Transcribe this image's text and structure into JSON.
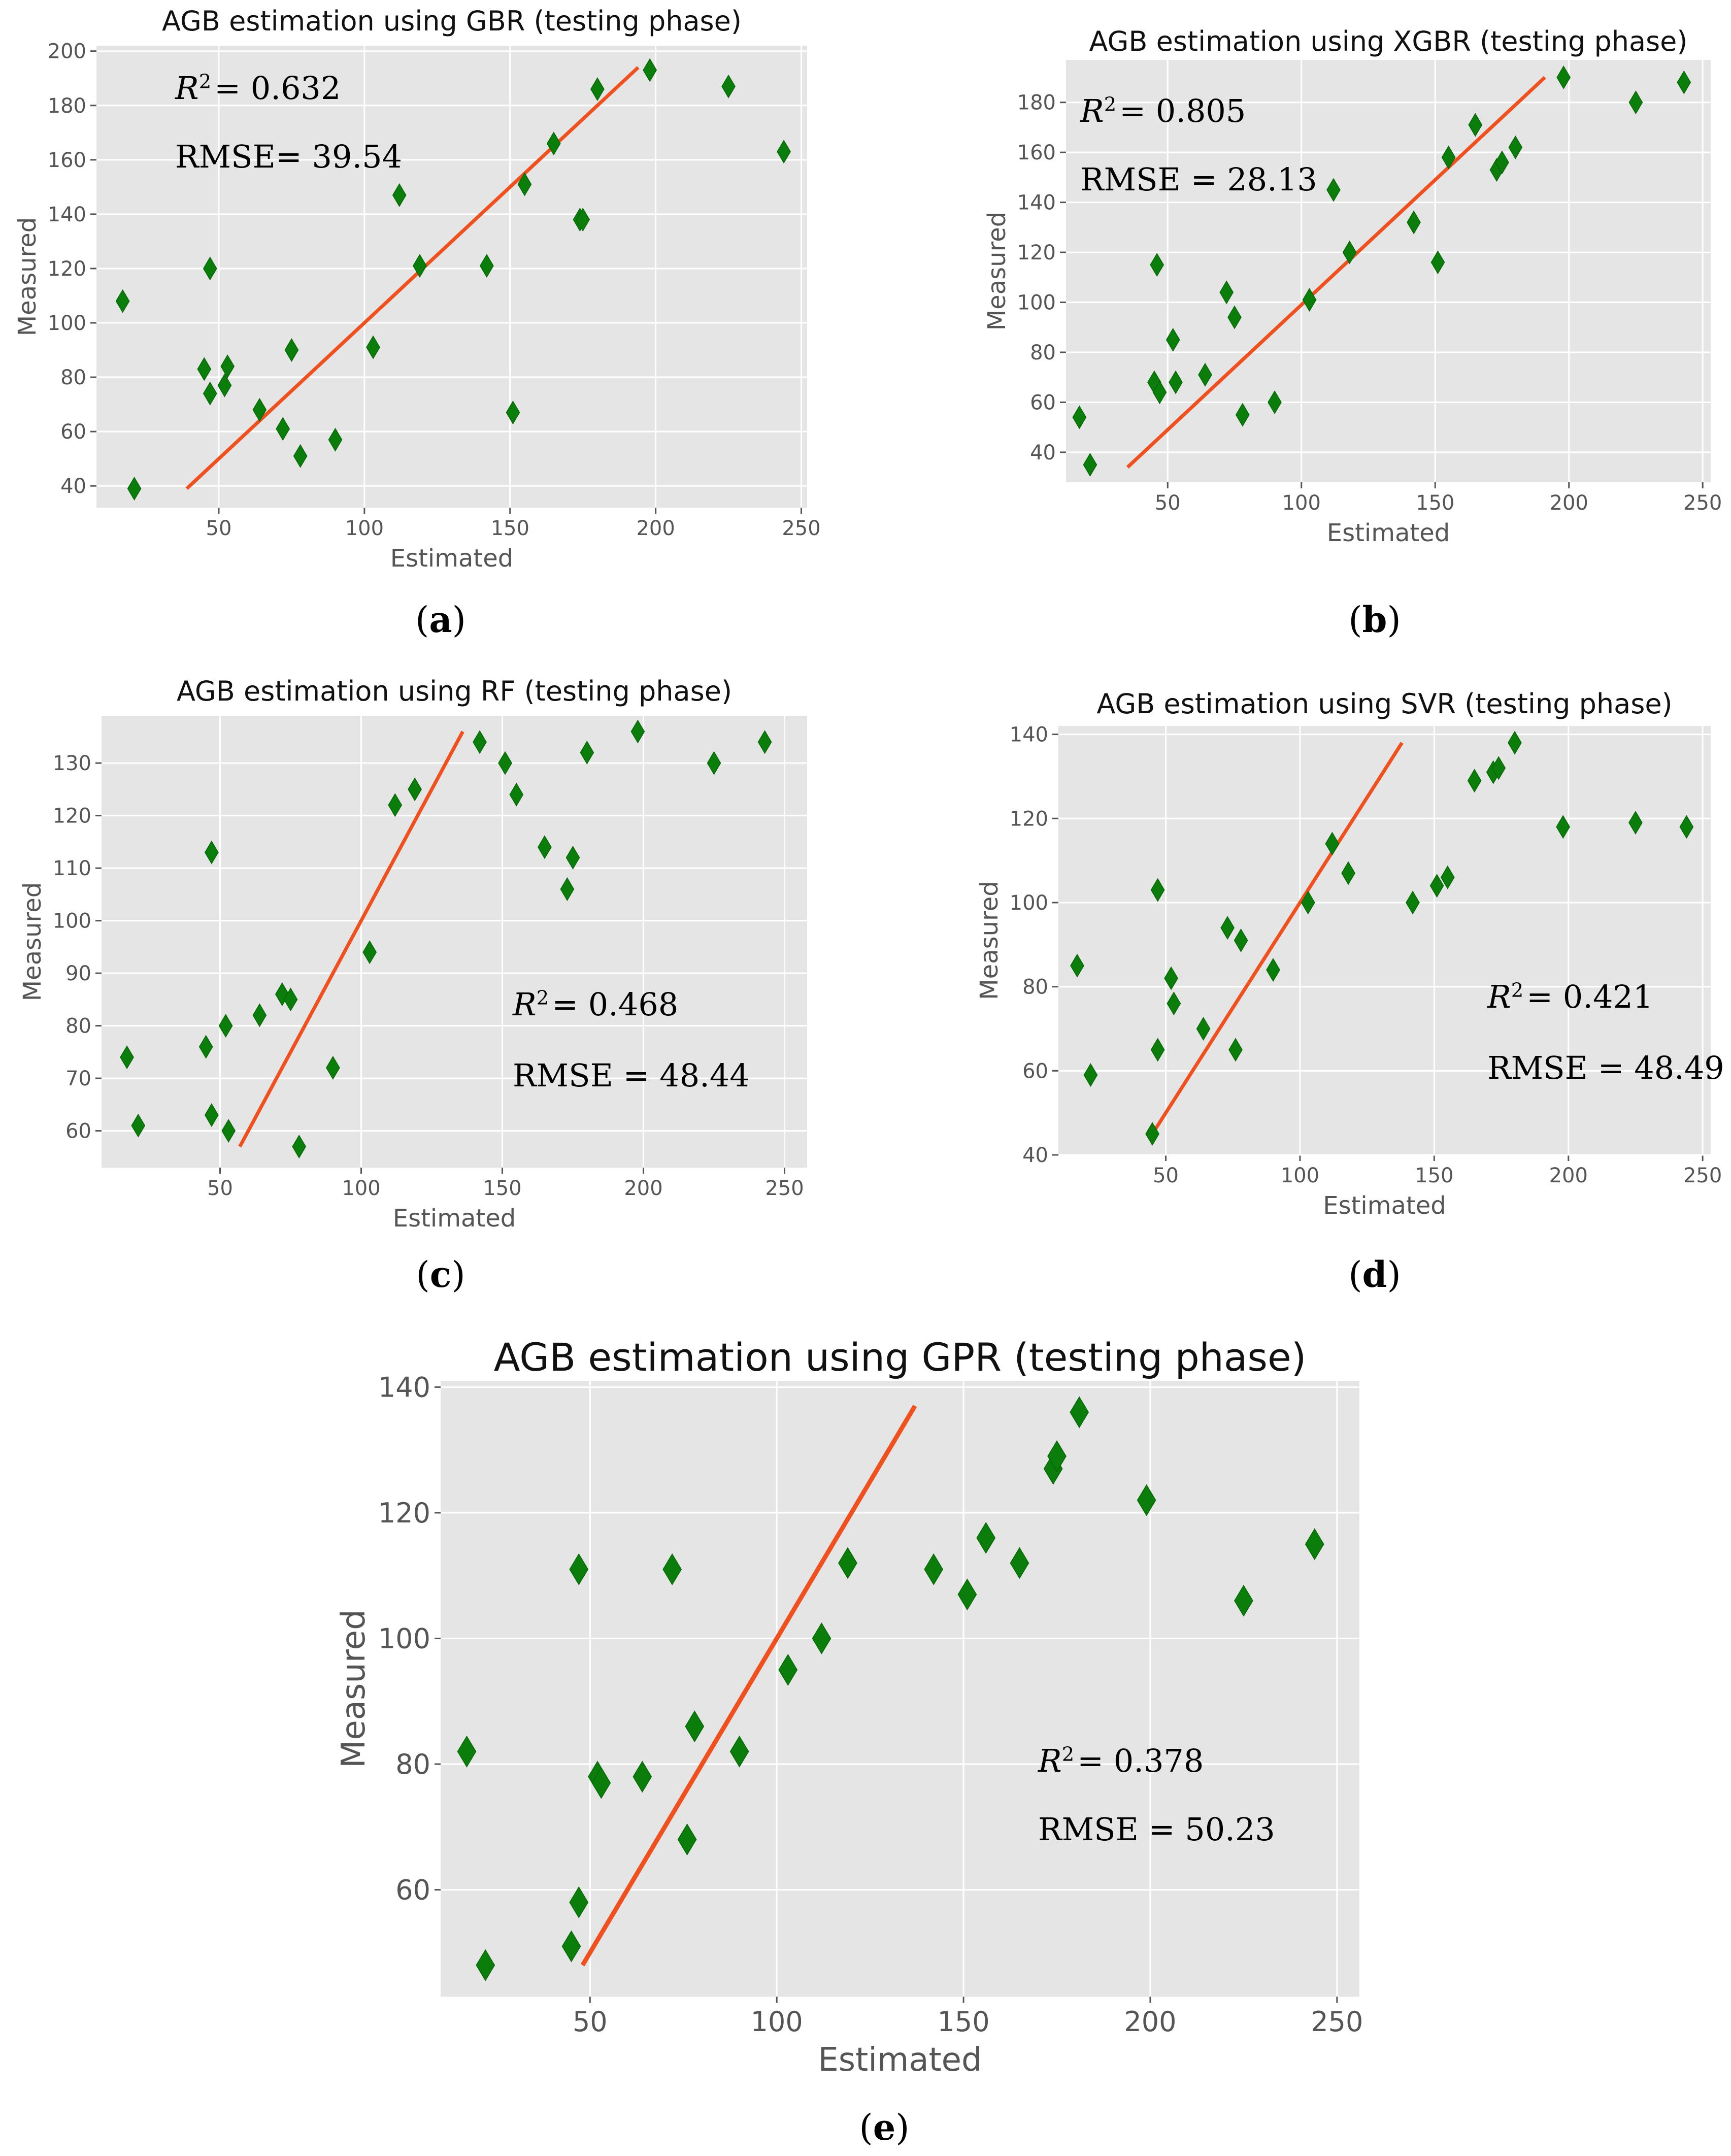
{
  "panels": [
    {
      "id": "a",
      "sublabel": "a",
      "stats": {
        "r2_prefix": "R",
        "r2_sup": "2",
        "r2_value": "= 0.632",
        "rmse": "RMSE= 39.54"
      },
      "chart_data": {
        "type": "scatter",
        "title": "AGB estimation using GBR (testing phase)",
        "xlabel": "Estimated",
        "ylabel": "Measured",
        "xlim": [
          8,
          252
        ],
        "ylim": [
          32,
          202
        ],
        "xticks": [
          "50",
          "100",
          "150",
          "200",
          "250"
        ],
        "yticks": [
          "40",
          "60",
          "80",
          "100",
          "120",
          "140",
          "160",
          "180",
          "200"
        ],
        "fit_line": [
          [
            39,
            39
          ],
          [
            194,
            194
          ]
        ],
        "points": [
          [
            17,
            108
          ],
          [
            21,
            39
          ],
          [
            45,
            83
          ],
          [
            47,
            120
          ],
          [
            47,
            74
          ],
          [
            52,
            77
          ],
          [
            53,
            84
          ],
          [
            64,
            68
          ],
          [
            72,
            61
          ],
          [
            75,
            90
          ],
          [
            78,
            51
          ],
          [
            90,
            57
          ],
          [
            103,
            91
          ],
          [
            112,
            147
          ],
          [
            119,
            121
          ],
          [
            142,
            121
          ],
          [
            151,
            67
          ],
          [
            155,
            151
          ],
          [
            165,
            166
          ],
          [
            174,
            138
          ],
          [
            175,
            138
          ],
          [
            180,
            186
          ],
          [
            198,
            193
          ],
          [
            225,
            187
          ],
          [
            244,
            163
          ]
        ]
      }
    },
    {
      "id": "b",
      "sublabel": "b",
      "stats": {
        "r2_prefix": "R",
        "r2_sup": "2",
        "r2_value": "= 0.805",
        "rmse": "RMSE = 28.13"
      },
      "chart_data": {
        "type": "scatter",
        "title": "AGB estimation using XGBR (testing phase)",
        "xlabel": "Estimated",
        "ylabel": "Measured",
        "xlim": [
          12,
          253
        ],
        "ylim": [
          28,
          197
        ],
        "xticks": [
          "50",
          "100",
          "150",
          "200",
          "250"
        ],
        "yticks": [
          "40",
          "60",
          "80",
          "100",
          "120",
          "140",
          "160",
          "180"
        ],
        "fit_line": [
          [
            35,
            34
          ],
          [
            191,
            190
          ]
        ],
        "points": [
          [
            17,
            54
          ],
          [
            21,
            35
          ],
          [
            45,
            68
          ],
          [
            46,
            115
          ],
          [
            47,
            64
          ],
          [
            52,
            85
          ],
          [
            53,
            68
          ],
          [
            64,
            71
          ],
          [
            72,
            104
          ],
          [
            75,
            94
          ],
          [
            78,
            55
          ],
          [
            90,
            60
          ],
          [
            103,
            101
          ],
          [
            112,
            145
          ],
          [
            118,
            120
          ],
          [
            142,
            132
          ],
          [
            151,
            116
          ],
          [
            155,
            158
          ],
          [
            165,
            171
          ],
          [
            173,
            153
          ],
          [
            175,
            156
          ],
          [
            180,
            162
          ],
          [
            198,
            190
          ],
          [
            225,
            180
          ],
          [
            243,
            188
          ]
        ]
      }
    },
    {
      "id": "c",
      "sublabel": "c",
      "stats": {
        "r2_prefix": "R",
        "r2_sup": "2",
        "r2_value": "= 0.468",
        "rmse": "RMSE = 48.44"
      },
      "chart_data": {
        "type": "scatter",
        "title": "AGB estimation using RF (testing phase)",
        "xlabel": "Estimated",
        "ylabel": "Measured",
        "xlim": [
          8,
          258
        ],
        "ylim": [
          53,
          139
        ],
        "xticks": [
          "50",
          "100",
          "150",
          "200",
          "250"
        ],
        "yticks": [
          "60",
          "70",
          "80",
          "90",
          "100",
          "110",
          "120",
          "130"
        ],
        "fit_line": [
          [
            57,
            57
          ],
          [
            136,
            136
          ]
        ],
        "points": [
          [
            17,
            74
          ],
          [
            21,
            61
          ],
          [
            45,
            76
          ],
          [
            47,
            113
          ],
          [
            47,
            63
          ],
          [
            52,
            80
          ],
          [
            53,
            60
          ],
          [
            64,
            82
          ],
          [
            72,
            86
          ],
          [
            75,
            85
          ],
          [
            78,
            57
          ],
          [
            90,
            72
          ],
          [
            103,
            94
          ],
          [
            112,
            122
          ],
          [
            119,
            125
          ],
          [
            142,
            134
          ],
          [
            151,
            130
          ],
          [
            155,
            124
          ],
          [
            165,
            114
          ],
          [
            173,
            106
          ],
          [
            175,
            112
          ],
          [
            180,
            132
          ],
          [
            198,
            136
          ],
          [
            225,
            130
          ],
          [
            243,
            134
          ]
        ]
      }
    },
    {
      "id": "d",
      "sublabel": "d",
      "stats": {
        "r2_prefix": "R",
        "r2_sup": "2",
        "r2_value": "= 0.421",
        "rmse": "RMSE = 48.49"
      },
      "chart_data": {
        "type": "scatter",
        "title": "AGB estimation using SVR (testing phase)",
        "xlabel": "Estimated",
        "ylabel": "Measured",
        "xlim": [
          10,
          253
        ],
        "ylim": [
          40,
          142
        ],
        "xticks": [
          "50",
          "100",
          "150",
          "200",
          "250"
        ],
        "yticks": [
          "40",
          "60",
          "80",
          "100",
          "120",
          "140"
        ],
        "fit_line": [
          [
            45,
            45
          ],
          [
            138,
            138
          ]
        ],
        "points": [
          [
            17,
            85
          ],
          [
            22,
            59
          ],
          [
            45,
            45
          ],
          [
            47,
            103
          ],
          [
            47,
            65
          ],
          [
            52,
            82
          ],
          [
            53,
            76
          ],
          [
            64,
            70
          ],
          [
            73,
            94
          ],
          [
            76,
            65
          ],
          [
            78,
            91
          ],
          [
            90,
            84
          ],
          [
            103,
            100
          ],
          [
            112,
            114
          ],
          [
            118,
            107
          ],
          [
            142,
            100
          ],
          [
            151,
            104
          ],
          [
            155,
            106
          ],
          [
            165,
            129
          ],
          [
            172,
            131
          ],
          [
            174,
            132
          ],
          [
            180,
            138
          ],
          [
            198,
            118
          ],
          [
            225,
            119
          ],
          [
            244,
            118
          ]
        ]
      }
    },
    {
      "id": "e",
      "sublabel": "e",
      "stats": {
        "r2_prefix": "R",
        "r2_sup": "2",
        "r2_value": "= 0.378",
        "rmse": "RMSE = 50.23"
      },
      "chart_data": {
        "type": "scatter",
        "title": "AGB estimation using GPR (testing phase)",
        "xlabel": "Estimated",
        "ylabel": "Measured",
        "xlim": [
          10,
          256
        ],
        "ylim": [
          43,
          141
        ],
        "xticks": [
          "50",
          "100",
          "150",
          "200",
          "250"
        ],
        "yticks": [
          "60",
          "80",
          "100",
          "120",
          "140"
        ],
        "fit_line": [
          [
            48,
            48
          ],
          [
            137,
            137
          ]
        ],
        "points": [
          [
            17,
            82
          ],
          [
            22,
            48
          ],
          [
            45,
            51
          ],
          [
            47,
            111
          ],
          [
            47,
            58
          ],
          [
            52,
            78
          ],
          [
            53,
            77
          ],
          [
            64,
            78
          ],
          [
            72,
            111
          ],
          [
            76,
            68
          ],
          [
            78,
            86
          ],
          [
            90,
            82
          ],
          [
            103,
            95
          ],
          [
            112,
            100
          ],
          [
            119,
            112
          ],
          [
            142,
            111
          ],
          [
            151,
            107
          ],
          [
            156,
            116
          ],
          [
            165,
            112
          ],
          [
            174,
            127
          ],
          [
            175,
            129
          ],
          [
            181,
            136
          ],
          [
            199,
            122
          ],
          [
            225,
            106
          ],
          [
            244,
            115
          ]
        ]
      }
    }
  ]
}
